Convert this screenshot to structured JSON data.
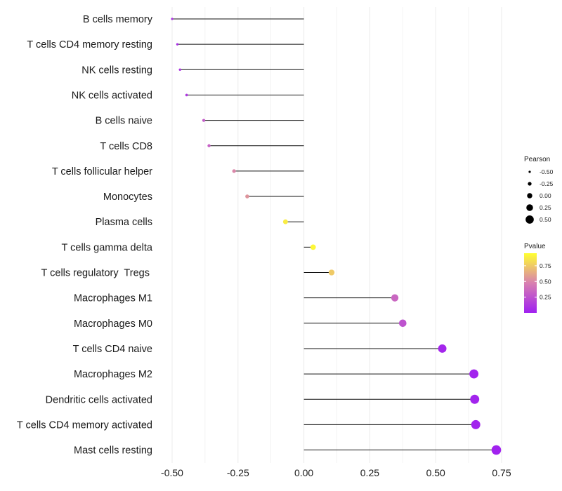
{
  "chart_data": {
    "type": "lollipop",
    "title": "",
    "xlabel": "",
    "ylabel": "",
    "xlim": [
      -0.55,
      0.78
    ],
    "x_ticks": [
      -0.5,
      -0.25,
      0.0,
      0.25,
      0.5,
      0.75
    ],
    "x_tick_labels": [
      "-0.50",
      "-0.25",
      "0.00",
      "0.25",
      "0.50",
      "0.75"
    ],
    "grid": true,
    "categories": [
      "B cells memory",
      "T cells CD4 memory resting",
      "NK cells resting",
      "NK cells activated",
      "B cells naive",
      "T cells CD8",
      "T cells follicular helper",
      "Monocytes",
      "Plasma cells",
      "T cells gamma delta",
      "T cells regulatory  Tregs ",
      "Macrophages M1",
      "Macrophages M0",
      "T cells CD4 naive",
      "Macrophages M2",
      "Dendritic cells activated",
      "T cells CD4 memory activated",
      "Mast cells resting"
    ],
    "pearson": [
      -0.5,
      -0.48,
      -0.47,
      -0.445,
      -0.38,
      -0.36,
      -0.265,
      -0.215,
      -0.07,
      0.035,
      0.105,
      0.345,
      0.375,
      0.525,
      0.645,
      0.648,
      0.652,
      0.73
    ],
    "pvalue": [
      0.1,
      0.08,
      0.1,
      0.12,
      0.3,
      0.32,
      0.5,
      0.55,
      0.88,
      0.92,
      0.75,
      0.35,
      0.25,
      0.03,
      0.02,
      0.02,
      0.02,
      0.01
    ],
    "size_legend": {
      "title": "Pearson",
      "values": [
        -0.5,
        -0.25,
        0.0,
        0.25,
        0.5
      ],
      "labels": [
        "-0.50",
        "-0.25",
        "0.00",
        "0.25",
        "0.50"
      ]
    },
    "color_legend": {
      "title": "Pvalue",
      "ticks": [
        0.75,
        0.5,
        0.25
      ],
      "labels": [
        "0.75",
        "0.50",
        "0.25"
      ],
      "range": [
        0.0,
        0.95
      ],
      "low_color": "#a020f0",
      "mid_color": "#d880b0",
      "high_color": "#ffff30"
    },
    "segment_color": "#111111",
    "grid_color": "#ebebeb"
  }
}
